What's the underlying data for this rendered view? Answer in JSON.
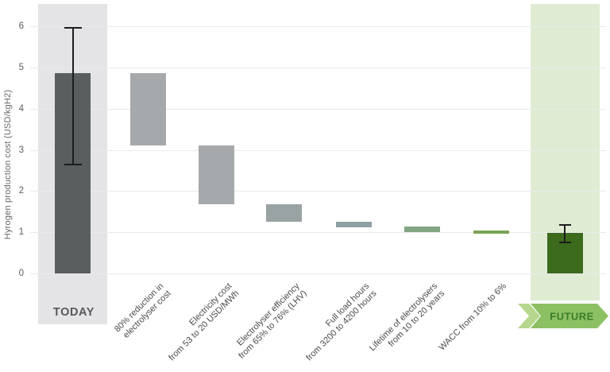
{
  "chart_data": {
    "type": "bar",
    "subtype": "waterfall",
    "title": "",
    "ylabel": "Hyrogen production cost (USD/kgH2)",
    "xlabel": "",
    "ylim": [
      0,
      6
    ],
    "yticks": [
      0,
      1,
      2,
      3,
      4,
      5,
      6
    ],
    "grid": true,
    "legend": null,
    "bars": [
      {
        "label": "TODAY",
        "label_lines": [
          "TODAY"
        ],
        "kind": "total",
        "start": 0,
        "end": 4.87,
        "error_low": 2.65,
        "error_high": 5.97,
        "color": "#595e5f",
        "band_color": "#e4e4e7",
        "label_style": "band"
      },
      {
        "label": "80% reduction in electrolyser cost",
        "label_lines": [
          "80% reduction in",
          "electrolyser cost"
        ],
        "kind": "step",
        "start": 4.87,
        "end": 3.1,
        "color": "#a6a9ab"
      },
      {
        "label": "Electricity cost from 53 to 20 USD/MWh",
        "label_lines": [
          "Electricity cost",
          "from 53 to 20 USD/MWh"
        ],
        "kind": "step",
        "start": 3.1,
        "end": 1.68,
        "color": "#a6a9ab"
      },
      {
        "label": "Electrolyser efficiency from 65% to 76% (LHV)",
        "label_lines": [
          "Electrolyser efficiency",
          "from 65% to 76% (LHV)"
        ],
        "kind": "step",
        "start": 1.68,
        "end": 1.25,
        "color": "#9aa3a4"
      },
      {
        "label": "Full load hours from 3200 to 4200 hours",
        "label_lines": [
          "Full load hours",
          "from 3200 to 4200 hours"
        ],
        "kind": "step",
        "start": 1.26,
        "end": 1.11,
        "color": "#8da0a4"
      },
      {
        "label": "Lifetime of electrolysers from 10 to 20 years",
        "label_lines": [
          "Lifetime of electrolysers",
          "from 10 to 20 years"
        ],
        "kind": "step",
        "start": 1.13,
        "end": 1.0,
        "color": "#84a583"
      },
      {
        "label": "WACC from 10% to 6%",
        "label_lines": [
          "WACC from 10% to 6%"
        ],
        "kind": "step",
        "start": 1.04,
        "end": 0.97,
        "color": "#7aa455"
      },
      {
        "label": "FUTURE",
        "label_lines": [
          "FUTURE"
        ],
        "kind": "total",
        "start": 0,
        "end": 0.98,
        "error_low": 0.75,
        "error_high": 1.18,
        "color": "#3c6b1e",
        "band_color": "#dfecd3",
        "label_style": "ribbon"
      }
    ]
  },
  "ribbon": {
    "body_color": "#8cc063",
    "chevron_color": "#b7d78e",
    "text_color": "#3a7d28"
  }
}
